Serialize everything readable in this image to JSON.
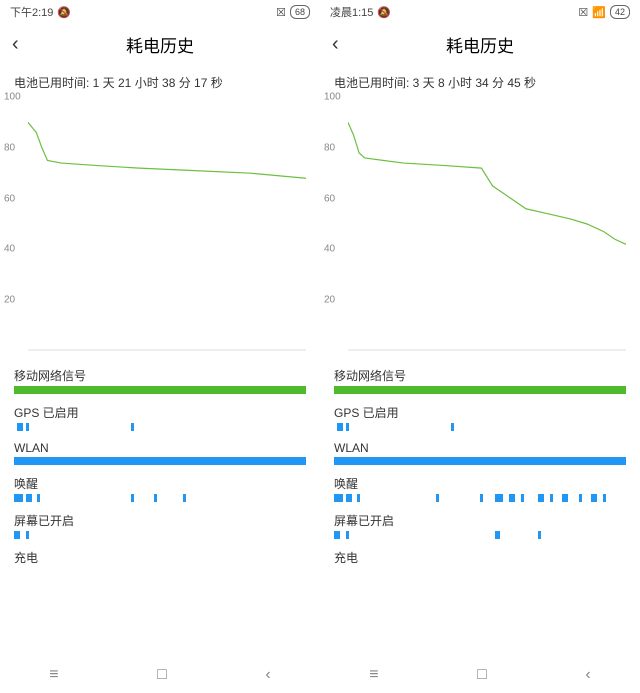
{
  "screens": [
    {
      "status": {
        "time": "下午2:19",
        "dnd": "🔕",
        "battery": "68",
        "wifi": false
      },
      "title": "耗电历史",
      "elapsed": "电池已用时间: 1 天 21 小时 38 分 17 秒",
      "chart": {
        "ylim": [
          0,
          100
        ],
        "yticks": [
          100,
          80,
          60,
          40,
          20
        ],
        "line_color": "#6cbf3f",
        "axis_color": "#dddddd",
        "background": "#ffffff",
        "points": [
          [
            0,
            90
          ],
          [
            3,
            86
          ],
          [
            5,
            80
          ],
          [
            7,
            75
          ],
          [
            12,
            74
          ],
          [
            25,
            73
          ],
          [
            40,
            72
          ],
          [
            60,
            71
          ],
          [
            80,
            70
          ],
          [
            100,
            68
          ]
        ]
      },
      "sections": {
        "mobile_signal": {
          "label": "移动网络信号",
          "color": "#4fba2e",
          "full": true
        },
        "gps": {
          "label": "GPS 已启用",
          "segments": [
            [
              1,
              2
            ],
            [
              4,
              1
            ],
            [
              40,
              1
            ]
          ]
        },
        "wlan": {
          "label": "WLAN",
          "color": "#2196f3",
          "full": true
        },
        "wake": {
          "label": "唤醒",
          "segments": [
            [
              0,
              3
            ],
            [
              4,
              2
            ],
            [
              8,
              1
            ],
            [
              40,
              1
            ],
            [
              48,
              1
            ],
            [
              58,
              1
            ]
          ]
        },
        "screen_on": {
          "label": "屏幕已开启",
          "segments": [
            [
              0,
              2
            ],
            [
              4,
              1
            ]
          ]
        },
        "charging": {
          "label": "充电",
          "segments": []
        }
      }
    },
    {
      "status": {
        "time": "凌晨1:15",
        "dnd": "🔕",
        "battery": "42",
        "wifi": true
      },
      "title": "耗电历史",
      "elapsed": "电池已用时间: 3 天 8 小时 34 分 45 秒",
      "chart": {
        "ylim": [
          0,
          100
        ],
        "yticks": [
          100,
          80,
          60,
          40,
          20
        ],
        "line_color": "#6cbf3f",
        "axis_color": "#dddddd",
        "background": "#ffffff",
        "points": [
          [
            0,
            90
          ],
          [
            2,
            85
          ],
          [
            4,
            78
          ],
          [
            6,
            76
          ],
          [
            20,
            74
          ],
          [
            35,
            73
          ],
          [
            48,
            72
          ],
          [
            52,
            65
          ],
          [
            56,
            62
          ],
          [
            60,
            59
          ],
          [
            64,
            56
          ],
          [
            72,
            54
          ],
          [
            80,
            52
          ],
          [
            86,
            50
          ],
          [
            92,
            47
          ],
          [
            96,
            44
          ],
          [
            100,
            42
          ]
        ]
      },
      "sections": {
        "mobile_signal": {
          "label": "移动网络信号",
          "color": "#4fba2e",
          "full": true
        },
        "gps": {
          "label": "GPS 已启用",
          "segments": [
            [
              1,
              2
            ],
            [
              4,
              1
            ],
            [
              40,
              1
            ]
          ]
        },
        "wlan": {
          "label": "WLAN",
          "color": "#2196f3",
          "full": true
        },
        "wake": {
          "label": "唤醒",
          "segments": [
            [
              0,
              3
            ],
            [
              4,
              2
            ],
            [
              8,
              1
            ],
            [
              35,
              1
            ],
            [
              50,
              1
            ],
            [
              55,
              3
            ],
            [
              60,
              2
            ],
            [
              64,
              1
            ],
            [
              70,
              2
            ],
            [
              74,
              1
            ],
            [
              78,
              2
            ],
            [
              84,
              1
            ],
            [
              88,
              2
            ],
            [
              92,
              1
            ]
          ]
        },
        "screen_on": {
          "label": "屏幕已开启",
          "segments": [
            [
              0,
              2
            ],
            [
              4,
              1
            ],
            [
              55,
              2
            ],
            [
              70,
              1
            ]
          ]
        },
        "charging": {
          "label": "充电",
          "segments": []
        }
      }
    }
  ],
  "nav": {
    "recent": "≡",
    "home": "□",
    "back": "‹"
  }
}
